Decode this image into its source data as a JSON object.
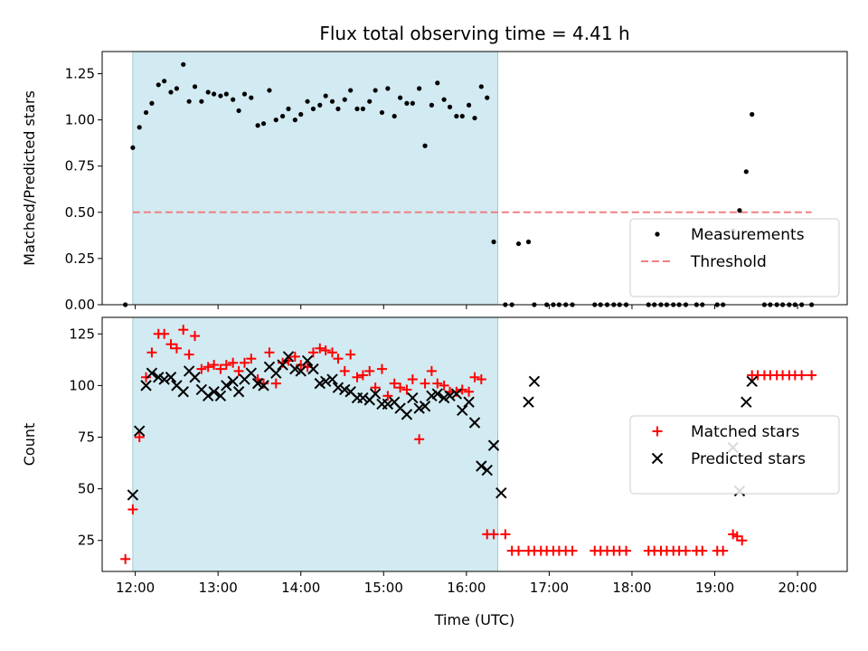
{
  "chart_data": {
    "type": "scatter",
    "title": "Flux total observing time = 4.41 h",
    "xlabel": "Time (UTC)",
    "xlim": [
      11.6,
      20.6
    ],
    "x_ticks": [
      {
        "value": 12,
        "label": "12:00"
      },
      {
        "value": 13,
        "label": "13:00"
      },
      {
        "value": 14,
        "label": "14:00"
      },
      {
        "value": 15,
        "label": "15:00"
      },
      {
        "value": 16,
        "label": "16:00"
      },
      {
        "value": 17,
        "label": "17:00"
      },
      {
        "value": 18,
        "label": "18:00"
      },
      {
        "value": 19,
        "label": "19:00"
      },
      {
        "value": 20,
        "label": "20:00"
      }
    ],
    "shaded_interval": [
      11.97,
      16.38
    ],
    "panels": [
      {
        "name": "ratio",
        "ylabel": "Matched/Predicted stars",
        "ylim": [
          0,
          1.37
        ],
        "y_ticks": [
          {
            "value": 0,
            "label": "0.00"
          },
          {
            "value": 0.25,
            "label": "0.25"
          },
          {
            "value": 0.5,
            "label": "0.50"
          },
          {
            "value": 0.75,
            "label": "0.75"
          },
          {
            "value": 1.0,
            "label": "1.00"
          },
          {
            "value": 1.25,
            "label": "1.25"
          }
        ],
        "threshold": {
          "name": "Threshold",
          "value": 0.5,
          "x_range": [
            11.97,
            20.17
          ],
          "color": "#f08080"
        },
        "legend": {
          "placement": "lower-right",
          "entries": [
            "Measurements",
            "Threshold"
          ]
        },
        "series": [
          {
            "name": "Measurements",
            "marker": "dot",
            "color": "#000000",
            "x": [
              11.88,
              11.97,
              12.05,
              12.13,
              12.2,
              12.28,
              12.35,
              12.43,
              12.5,
              12.58,
              12.65,
              12.72,
              12.8,
              12.88,
              12.95,
              13.03,
              13.1,
              13.18,
              13.25,
              13.32,
              13.4,
              13.48,
              13.55,
              13.62,
              13.7,
              13.78,
              13.85,
              13.93,
              14.0,
              14.08,
              14.15,
              14.23,
              14.3,
              14.38,
              14.45,
              14.53,
              14.6,
              14.68,
              14.75,
              14.83,
              14.9,
              14.98,
              15.05,
              15.13,
              15.2,
              15.28,
              15.35,
              15.43,
              15.5,
              15.58,
              15.65,
              15.73,
              15.8,
              15.88,
              15.95,
              16.03,
              16.1,
              16.18,
              16.25,
              16.33,
              16.47,
              16.55,
              16.63,
              16.75,
              16.82,
              16.97,
              17.05,
              17.12,
              17.2,
              17.28,
              17.55,
              17.62,
              17.7,
              17.78,
              17.85,
              17.93,
              18.2,
              18.27,
              18.35,
              18.42,
              18.5,
              18.57,
              18.65,
              18.78,
              18.85,
              19.03,
              19.1,
              19.22,
              19.3,
              19.38,
              19.45,
              19.6,
              19.67,
              19.75,
              19.82,
              19.9,
              19.97,
              20.05,
              20.17
            ],
            "y": [
              0.0,
              0.85,
              0.96,
              1.04,
              1.09,
              1.19,
              1.21,
              1.15,
              1.17,
              1.3,
              1.1,
              1.18,
              1.1,
              1.15,
              1.14,
              1.13,
              1.14,
              1.11,
              1.05,
              1.14,
              1.12,
              0.97,
              0.98,
              1.16,
              1.0,
              1.02,
              1.06,
              1.0,
              1.03,
              1.1,
              1.06,
              1.08,
              1.13,
              1.1,
              1.06,
              1.11,
              1.16,
              1.06,
              1.06,
              1.1,
              1.16,
              1.04,
              1.17,
              1.02,
              1.12,
              1.09,
              1.09,
              1.17,
              0.86,
              1.08,
              1.2,
              1.11,
              1.07,
              1.02,
              1.02,
              1.08,
              1.01,
              1.18,
              1.12,
              0.34,
              0.0,
              0.0,
              0.33,
              0.34,
              0.0,
              0.0,
              0.0,
              0.0,
              0.0,
              0.0,
              0.0,
              0.0,
              0.0,
              0.0,
              0.0,
              0.0,
              0.0,
              0.0,
              0.0,
              0.0,
              0.0,
              0.0,
              0.0,
              0.0,
              0.0,
              0.0,
              0.0,
              0.4,
              0.51,
              0.72,
              1.03,
              0.0,
              0.0,
              0.0,
              0.0,
              0.0,
              0.0,
              0.0,
              0.0
            ]
          }
        ]
      },
      {
        "name": "count",
        "ylabel": "Count",
        "ylim": [
          10,
          133
        ],
        "y_ticks": [
          {
            "value": 25,
            "label": "25"
          },
          {
            "value": 50,
            "label": "50"
          },
          {
            "value": 75,
            "label": "75"
          },
          {
            "value": 100,
            "label": "100"
          },
          {
            "value": 125,
            "label": "125"
          }
        ],
        "legend": {
          "placement": "center-right",
          "entries": [
            "Matched stars",
            "Predicted stars"
          ]
        },
        "series": [
          {
            "name": "Matched stars",
            "marker": "plus",
            "color": "#ff0000",
            "x": [
              11.88,
              11.97,
              12.05,
              12.13,
              12.2,
              12.28,
              12.35,
              12.43,
              12.5,
              12.58,
              12.65,
              12.72,
              12.8,
              12.88,
              12.95,
              13.03,
              13.1,
              13.18,
              13.25,
              13.32,
              13.4,
              13.48,
              13.55,
              13.62,
              13.7,
              13.78,
              13.85,
              13.93,
              14.0,
              14.08,
              14.15,
              14.23,
              14.3,
              14.38,
              14.45,
              14.53,
              14.6,
              14.68,
              14.75,
              14.83,
              14.9,
              14.98,
              15.05,
              15.13,
              15.2,
              15.28,
              15.35,
              15.43,
              15.5,
              15.58,
              15.65,
              15.73,
              15.8,
              15.88,
              15.95,
              16.03,
              16.1,
              16.18,
              16.25,
              16.33,
              16.47,
              16.55,
              16.63,
              16.75,
              16.82,
              16.9,
              16.97,
              17.05,
              17.12,
              17.2,
              17.28,
              17.55,
              17.62,
              17.7,
              17.78,
              17.85,
              17.93,
              18.2,
              18.27,
              18.35,
              18.42,
              18.5,
              18.57,
              18.65,
              18.78,
              18.85,
              19.03,
              19.1,
              19.22,
              19.27,
              19.33,
              19.45,
              19.52,
              19.6,
              19.67,
              19.75,
              19.82,
              19.9,
              19.97,
              20.05,
              20.17
            ],
            "y": [
              16,
              40,
              75,
              104,
              116,
              125,
              125,
              120,
              118,
              127,
              115,
              124,
              108,
              109,
              110,
              108,
              110,
              111,
              107,
              111,
              113,
              103,
              101,
              116,
              101,
              111,
              112,
              114,
              110,
              109,
              116,
              118,
              117,
              116,
              113,
              107,
              115,
              104,
              105,
              107,
              99,
              108,
              95,
              101,
              99,
              98,
              103,
              74,
              101,
              107,
              101,
              100,
              97,
              97,
              98,
              97,
              104,
              103,
              28,
              28,
              28,
              20,
              20,
              20,
              20,
              20,
              20,
              20,
              20,
              20,
              20,
              20,
              20,
              20,
              20,
              20,
              20,
              20,
              20,
              20,
              20,
              20,
              20,
              20,
              20,
              20,
              20,
              20,
              28,
              27,
              25,
              105,
              105,
              105,
              105,
              105,
              105,
              105,
              105,
              105,
              105
            ]
          },
          {
            "name": "Predicted stars",
            "marker": "x",
            "color": "#000000",
            "x": [
              11.97,
              12.05,
              12.13,
              12.2,
              12.28,
              12.35,
              12.43,
              12.5,
              12.58,
              12.65,
              12.72,
              12.8,
              12.88,
              12.95,
              13.03,
              13.1,
              13.18,
              13.25,
              13.32,
              13.4,
              13.48,
              13.55,
              13.62,
              13.7,
              13.78,
              13.85,
              13.93,
              14.0,
              14.08,
              14.15,
              14.23,
              14.3,
              14.38,
              14.45,
              14.53,
              14.6,
              14.68,
              14.75,
              14.83,
              14.9,
              14.98,
              15.05,
              15.13,
              15.2,
              15.28,
              15.35,
              15.43,
              15.5,
              15.58,
              15.65,
              15.73,
              15.8,
              15.88,
              15.95,
              16.03,
              16.1,
              16.18,
              16.25,
              16.33,
              16.42,
              16.75,
              16.82,
              19.22,
              19.3,
              19.38,
              19.45
            ],
            "y": [
              47,
              78,
              100,
              106,
              104,
              103,
              104,
              100,
              97,
              107,
              104,
              98,
              95,
              97,
              95,
              100,
              102,
              97,
              103,
              106,
              101,
              100,
              109,
              106,
              110,
              114,
              108,
              107,
              112,
              108,
              101,
              102,
              103,
              99,
              98,
              97,
              94,
              94,
              93,
              96,
              91,
              91,
              92,
              89,
              86,
              94,
              89,
              90,
              95,
              96,
              94,
              95,
              96,
              88,
              92,
              82,
              61,
              59,
              71,
              48,
              92,
              102,
              70,
              49,
              92,
              102
            ]
          }
        ]
      }
    ]
  }
}
